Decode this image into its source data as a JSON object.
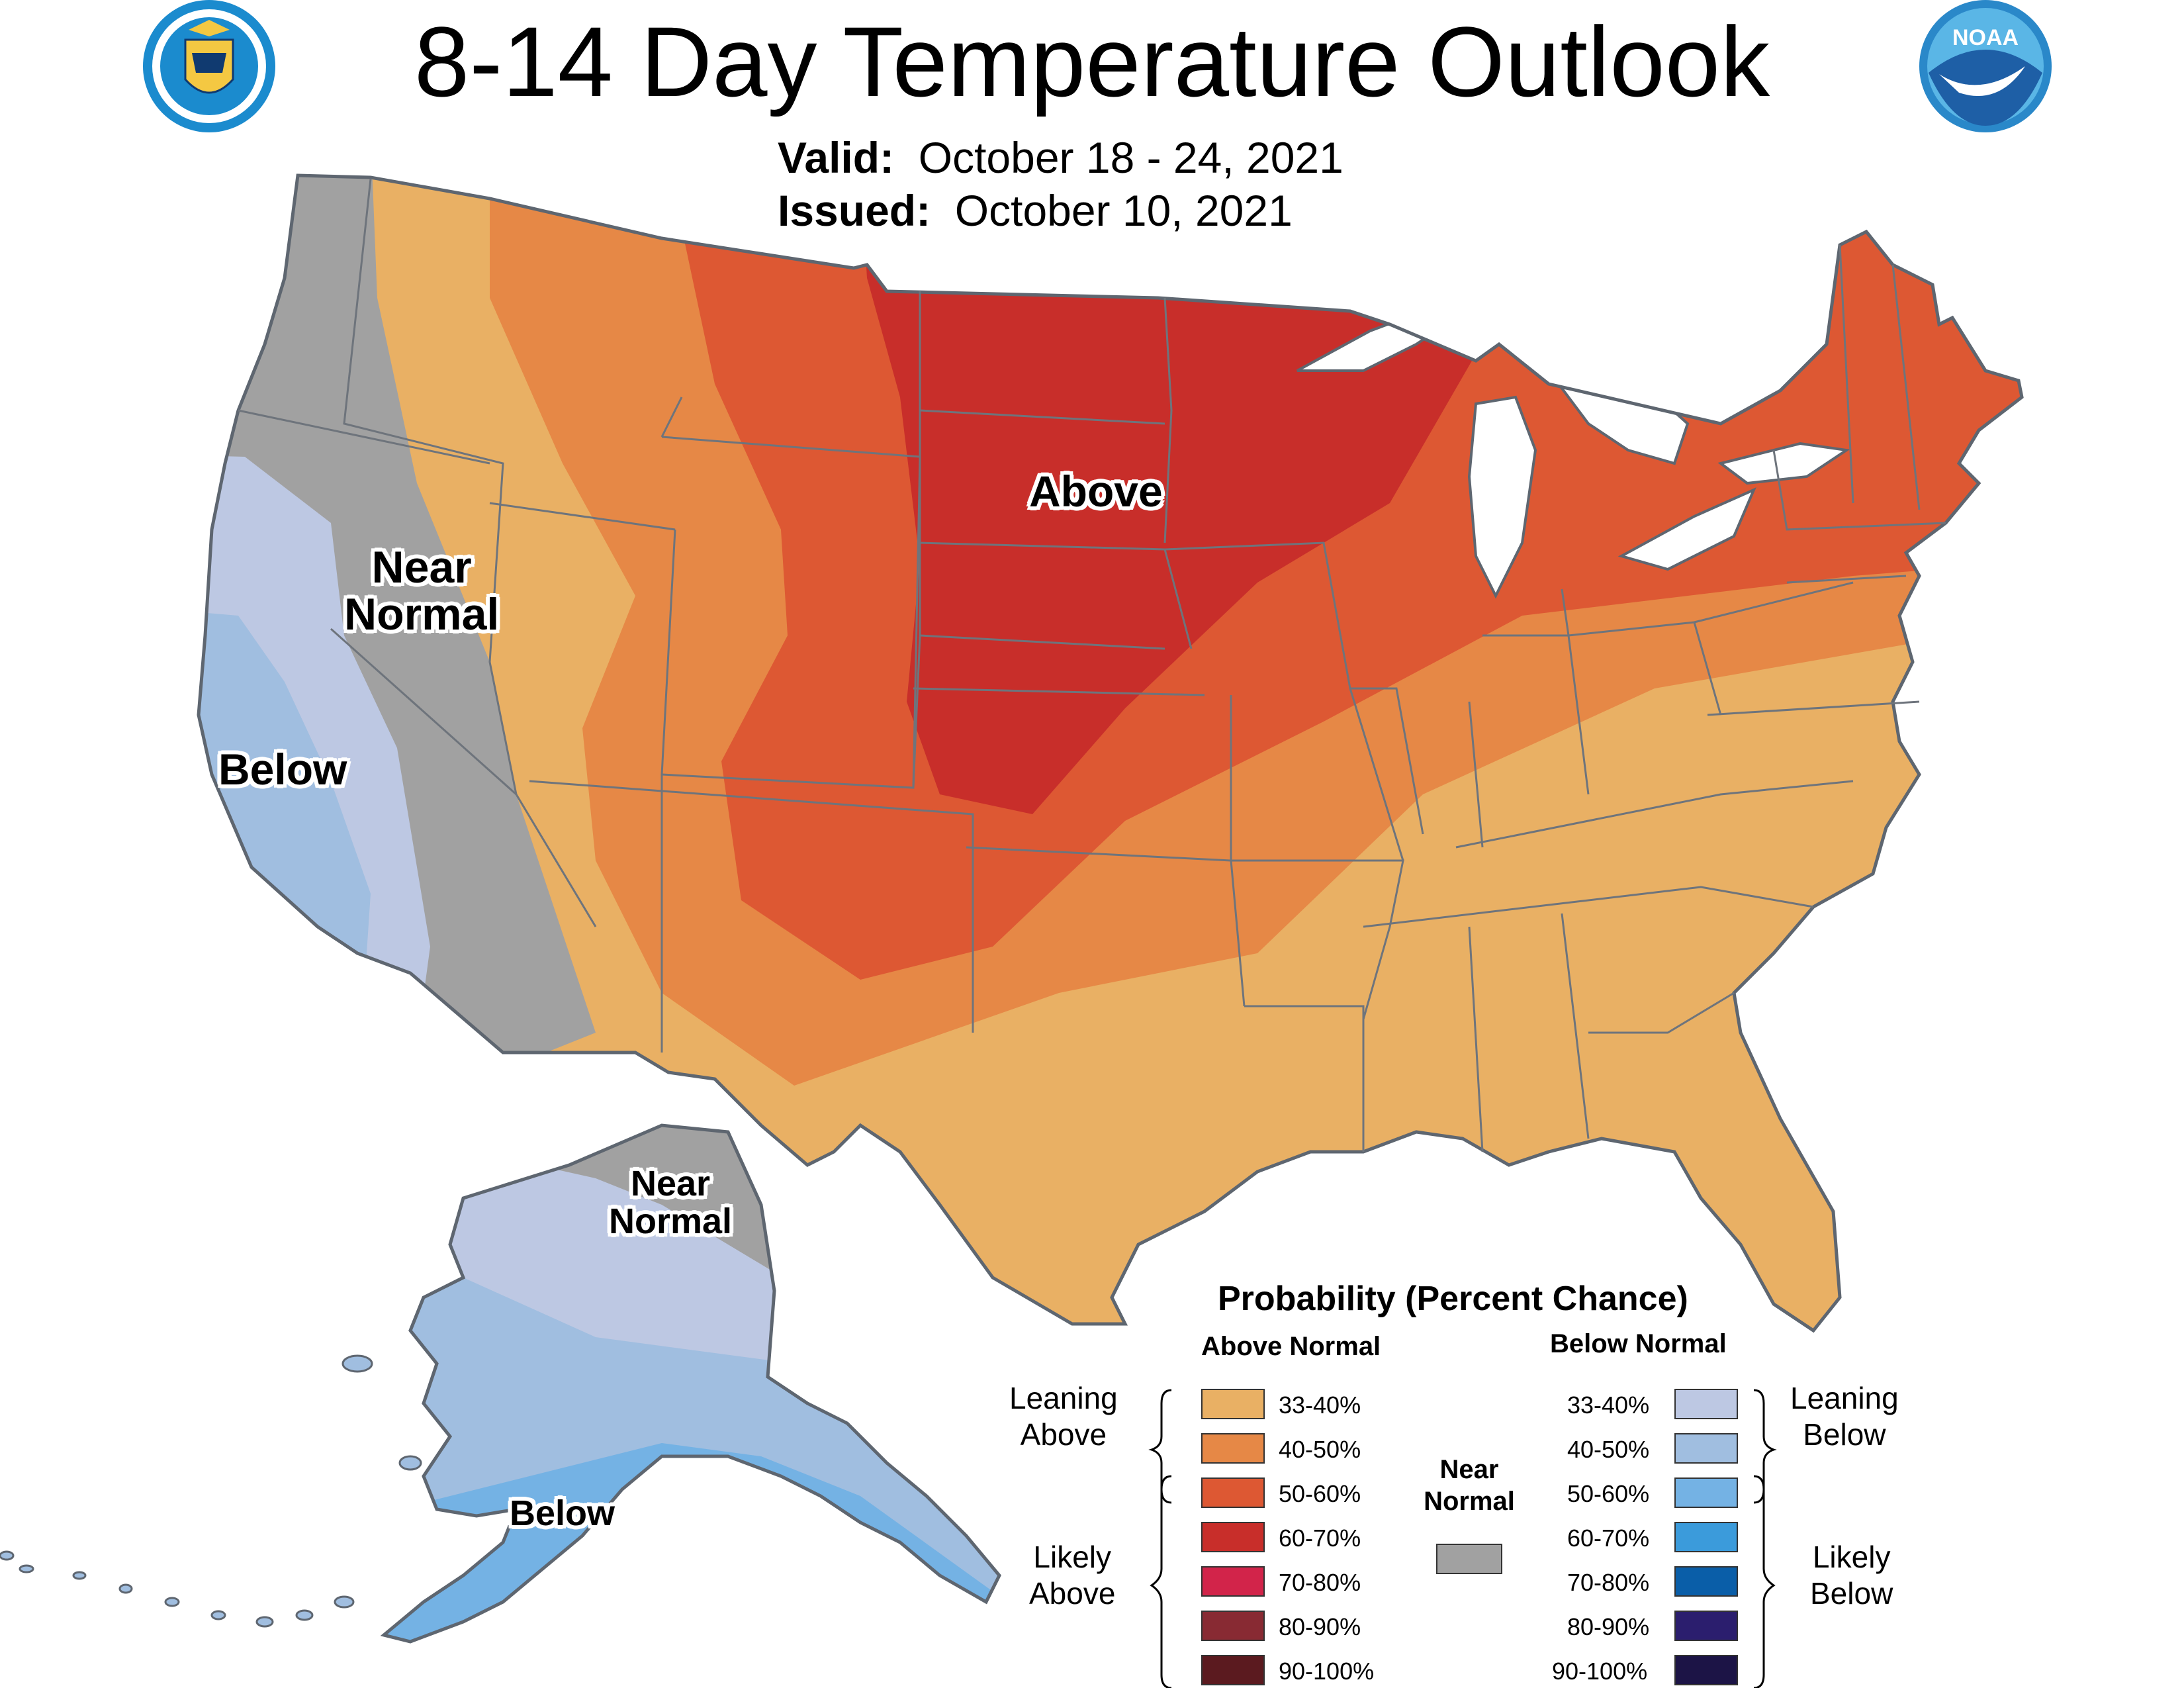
{
  "header": {
    "title": "8-14 Day Temperature Outlook",
    "valid_label": "Valid:",
    "valid_value": "October 18 - 24, 2021",
    "issued_label": "Issued:",
    "issued_value": "October 10, 2021"
  },
  "logos": {
    "commerce": "department-of-commerce-seal",
    "noaa_text": "NOAA"
  },
  "map_labels": {
    "conus_above": "Above",
    "conus_near_1": "Near",
    "conus_near_2": "Normal",
    "conus_below": "Below",
    "ak_near_1": "Near",
    "ak_near_2": "Normal",
    "ak_below": "Below"
  },
  "colors": {
    "above_33_40": "#E9B064",
    "above_40_50": "#E68846",
    "above_50_60": "#DD5833",
    "above_60_70": "#C82E2A",
    "above_70_80": "#D2244A",
    "above_80_90": "#882A33",
    "above_90_100": "#5B1A1F",
    "near_normal": "#A1A1A1",
    "below_33_40": "#BDC8E3",
    "below_40_50": "#A0BEE0",
    "below_50_60": "#74B2E4",
    "below_60_70": "#3B9BDB",
    "below_70_80": "#0A5EA8",
    "below_80_90": "#2B1E6E",
    "below_90_100": "#1C1446",
    "water": "#FFFFFF",
    "border": "#5E6670"
  },
  "legend": {
    "title": "Probability (Percent Chance)",
    "above_header": "Above Normal",
    "below_header": "Below Normal",
    "near_header_1": "Near",
    "near_header_2": "Normal",
    "leaning_above_1": "Leaning",
    "leaning_above_2": "Above",
    "likely_above_1": "Likely",
    "likely_above_2": "Above",
    "leaning_below_1": "Leaning",
    "leaning_below_2": "Below",
    "likely_below_1": "Likely",
    "likely_below_2": "Below",
    "above_ranges": [
      "33-40%",
      "40-50%",
      "50-60%",
      "60-70%",
      "70-80%",
      "80-90%",
      "90-100%"
    ],
    "below_ranges": [
      "33-40%",
      "40-50%",
      "50-60%",
      "60-70%",
      "70-80%",
      "80-90%",
      "90-100%"
    ]
  }
}
